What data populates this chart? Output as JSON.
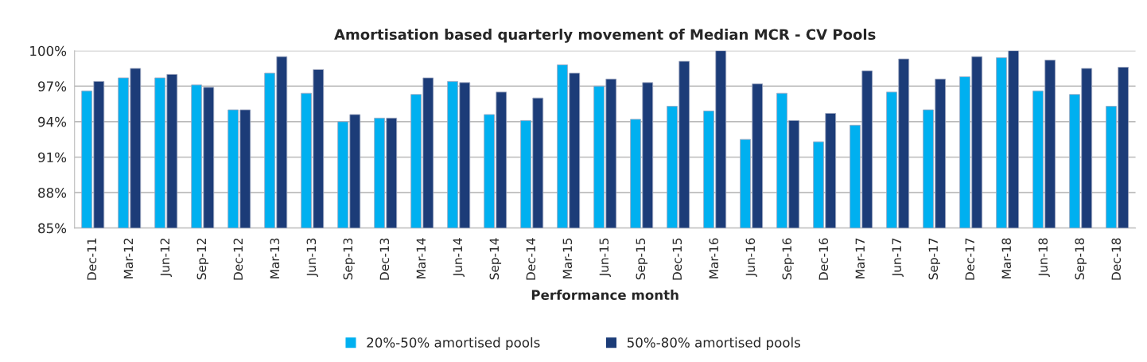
{
  "chart_data": {
    "type": "bar",
    "title": "Amortisation based quarterly movement of Median MCR - CV Pools",
    "xlabel": "Performance month",
    "categories": [
      "Dec-11",
      "Mar-12",
      "Jun-12",
      "Sep-12",
      "Dec-12",
      "Mar-13",
      "Jun-13",
      "Sep-13",
      "Dec-13",
      "Mar-14",
      "Jun-14",
      "Sep-14",
      "Dec-14",
      "Mar-15",
      "Jun-15",
      "Sep-15",
      "Dec-15",
      "Mar-16",
      "Jun-16",
      "Sep-16",
      "Dec-16",
      "Mar-17",
      "Jun-17",
      "Sep-17",
      "Dec-17",
      "Mar-18",
      "Jun-18",
      "Sep-18",
      "Dec-18"
    ],
    "series": [
      {
        "name": "20%-50% amortised pools",
        "color": "#00b0f0",
        "values": [
          96.6,
          97.7,
          97.7,
          97.1,
          95.0,
          98.1,
          96.4,
          94.0,
          94.3,
          96.3,
          97.4,
          94.6,
          94.1,
          98.8,
          97.0,
          94.2,
          95.3,
          94.9,
          92.5,
          96.4,
          92.3,
          93.7,
          96.5,
          95.0,
          97.8,
          99.4,
          96.6,
          96.3,
          95.3
        ]
      },
      {
        "name": "50%-80% amortised pools",
        "color": "#1c3c78",
        "values": [
          97.4,
          98.5,
          98.0,
          96.9,
          95.0,
          99.5,
          98.4,
          94.6,
          94.3,
          97.7,
          97.3,
          96.5,
          96.0,
          98.1,
          97.6,
          97.3,
          99.1,
          100,
          97.2,
          94.1,
          94.7,
          98.3,
          99.3,
          97.6,
          99.5,
          100,
          99.2,
          98.5,
          98.6
        ]
      }
    ],
    "ylim": [
      85,
      100
    ],
    "yticks": [
      {
        "value": 85,
        "label": "85%"
      },
      {
        "value": 88,
        "label": "88%"
      },
      {
        "value": 91,
        "label": "91%"
      },
      {
        "value": 94,
        "label": "94%"
      },
      {
        "value": 97,
        "label": "97%"
      },
      {
        "value": 100,
        "label": "100%"
      }
    ],
    "grid": "y",
    "legend": "bottom"
  }
}
